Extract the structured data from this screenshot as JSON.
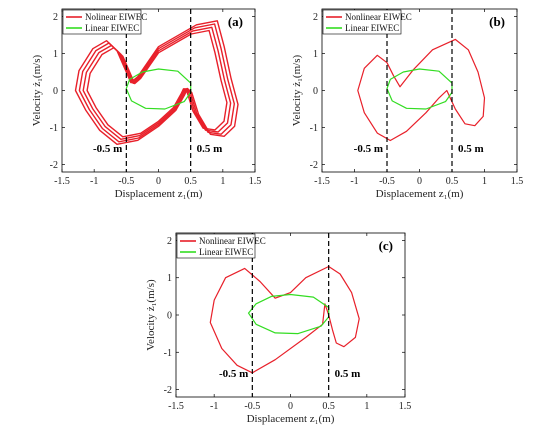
{
  "chart_data": [
    {
      "panel": "(a)",
      "type": "line",
      "xlabel": "Displacement z₁(m)",
      "ylabel": "Velocity ż₁(m/s)",
      "xlim": [
        -1.5,
        1.5
      ],
      "ylim": [
        -2.2,
        2.2
      ],
      "xticks": [
        -1.5,
        -1,
        -0.5,
        0,
        0.5,
        1,
        1.5
      ],
      "yticks": [
        -2,
        -1,
        0,
        1,
        2
      ],
      "xtick_labels": [
        "-1.5",
        "-1",
        "-0.5",
        "0",
        "0.5",
        "1",
        "1.5"
      ],
      "ytick_labels": [
        "-2",
        "-1",
        "0",
        "1",
        "2"
      ],
      "vlines": [
        -0.5,
        0.5
      ],
      "markers": [
        {
          "text": "-0.5 m",
          "x": -0.5,
          "y": -1.55
        },
        {
          "text": "0.5 m",
          "x": 0.5,
          "y": -1.55
        }
      ],
      "legend": {
        "placement": "top-left",
        "entries": [
          {
            "name": "Nolinear EIWEC",
            "color": "#e8202a"
          },
          {
            "name": "Linear EIWEC",
            "color": "#33dd22"
          }
        ]
      },
      "series": [
        {
          "name": "Nolinear EIWEC",
          "color": "#e8202a",
          "points": [
            [
              0.48,
              -0.05
            ],
            [
              0.58,
              -0.6
            ],
            [
              0.75,
              -1.1
            ],
            [
              0.95,
              -1.15
            ],
            [
              1.1,
              -0.9
            ],
            [
              1.15,
              -0.35
            ],
            [
              1.05,
              0.3
            ],
            [
              0.95,
              1.1
            ],
            [
              0.85,
              1.75
            ],
            [
              0.55,
              1.65
            ],
            [
              0.0,
              1.1
            ],
            [
              -0.3,
              0.35
            ],
            [
              -0.4,
              0.2
            ],
            [
              -0.6,
              1.0
            ],
            [
              -0.75,
              1.25
            ],
            [
              -0.95,
              1.05
            ],
            [
              -1.15,
              0.5
            ],
            [
              -1.2,
              0.0
            ],
            [
              -1.05,
              -0.5
            ],
            [
              -0.85,
              -1.0
            ],
            [
              -0.6,
              -1.35
            ],
            [
              -0.3,
              -1.25
            ],
            [
              0.0,
              -0.9
            ],
            [
              0.25,
              -0.5
            ],
            [
              0.38,
              -0.1
            ],
            [
              0.42,
              0.05
            ]
          ],
          "repeats": 4
        },
        {
          "name": "Linear EIWEC",
          "color": "#33dd22",
          "points": [
            [
              -0.5,
              0.05
            ],
            [
              -0.45,
              0.3
            ],
            [
              -0.25,
              0.5
            ],
            [
              0.0,
              0.58
            ],
            [
              0.3,
              0.52
            ],
            [
              0.5,
              0.2
            ],
            [
              0.5,
              -0.05
            ],
            [
              0.4,
              -0.3
            ],
            [
              0.1,
              -0.5
            ],
            [
              -0.2,
              -0.48
            ],
            [
              -0.42,
              -0.28
            ],
            [
              -0.5,
              0.05
            ]
          ]
        }
      ]
    },
    {
      "panel": "(b)",
      "type": "line",
      "xlabel": "Displacement z₁(m)",
      "ylabel": "Velocity ż₁(m/s)",
      "xlim": [
        -1.5,
        1.5
      ],
      "ylim": [
        -2.2,
        2.2
      ],
      "xticks": [
        -1.5,
        -1,
        -0.5,
        0,
        0.5,
        1,
        1.5
      ],
      "yticks": [
        -2,
        -1,
        0,
        1,
        2
      ],
      "xtick_labels": [
        "-1.5",
        "-1",
        "-0.5",
        "0",
        "0.5",
        "1",
        "1.5"
      ],
      "ytick_labels": [
        "-2",
        "-1",
        "0",
        "1",
        "2"
      ],
      "vlines": [
        -0.5,
        0.5
      ],
      "markers": [
        {
          "text": "-0.5 m",
          "x": -0.5,
          "y": -1.55
        },
        {
          "text": "0.5 m",
          "x": 0.5,
          "y": -1.55
        }
      ],
      "legend": {
        "placement": "top-left",
        "entries": [
          {
            "name": "Nonlinear EIWEC",
            "color": "#e8202a"
          },
          {
            "name": "Linear EIWEC",
            "color": "#33dd22"
          }
        ]
      },
      "series": [
        {
          "name": "Nonlinear EIWEC",
          "color": "#e8202a",
          "points": [
            [
              0.42,
              0.0
            ],
            [
              0.55,
              -0.5
            ],
            [
              0.7,
              -0.9
            ],
            [
              0.85,
              -0.95
            ],
            [
              0.98,
              -0.7
            ],
            [
              1.0,
              -0.2
            ],
            [
              0.9,
              0.5
            ],
            [
              0.75,
              1.1
            ],
            [
              0.55,
              1.38
            ],
            [
              0.2,
              1.1
            ],
            [
              -0.1,
              0.55
            ],
            [
              -0.3,
              0.1
            ],
            [
              -0.4,
              0.4
            ],
            [
              -0.5,
              0.75
            ],
            [
              -0.65,
              0.95
            ],
            [
              -0.85,
              0.6
            ],
            [
              -0.95,
              0.0
            ],
            [
              -0.85,
              -0.6
            ],
            [
              -0.65,
              -1.15
            ],
            [
              -0.45,
              -1.35
            ],
            [
              -0.2,
              -1.1
            ],
            [
              0.1,
              -0.6
            ],
            [
              0.3,
              -0.2
            ],
            [
              0.42,
              0.0
            ]
          ]
        },
        {
          "name": "Linear EIWEC",
          "color": "#33dd22",
          "points": [
            [
              -0.5,
              0.05
            ],
            [
              -0.45,
              0.3
            ],
            [
              -0.25,
              0.5
            ],
            [
              0.0,
              0.58
            ],
            [
              0.3,
              0.52
            ],
            [
              0.5,
              0.2
            ],
            [
              0.5,
              -0.05
            ],
            [
              0.4,
              -0.3
            ],
            [
              0.1,
              -0.5
            ],
            [
              -0.2,
              -0.48
            ],
            [
              -0.42,
              -0.28
            ],
            [
              -0.5,
              0.05
            ]
          ]
        }
      ]
    },
    {
      "panel": "(c)",
      "type": "line",
      "xlabel": "Displacement z₁(m)",
      "ylabel": "Velocity ż₁(m/s)",
      "xlim": [
        -1.5,
        1.5
      ],
      "ylim": [
        -2.2,
        2.2
      ],
      "xticks": [
        -1.5,
        -1,
        -0.5,
        0,
        0.5,
        1,
        1.5
      ],
      "yticks": [
        -2,
        -1,
        0,
        1,
        2
      ],
      "xtick_labels": [
        "-1.5",
        "-1",
        "-0.5",
        "0",
        "0.5",
        "1",
        "1.5"
      ],
      "ytick_labels": [
        "-2",
        "-1",
        "0",
        "1",
        "2"
      ],
      "vlines": [
        -0.5,
        0.5
      ],
      "markers": [
        {
          "text": "-0.5 m",
          "x": -0.5,
          "y": -1.55
        },
        {
          "text": "0.5 m",
          "x": 0.5,
          "y": -1.55
        }
      ],
      "legend": {
        "placement": "top-left",
        "entries": [
          {
            "name": "Nonlinear EIWEC",
            "color": "#e8202a"
          },
          {
            "name": "Linear EIWEC",
            "color": "#33dd22"
          }
        ]
      },
      "series": [
        {
          "name": "Nonlinear EIWEC",
          "color": "#e8202a",
          "points": [
            [
              0.45,
              0.3
            ],
            [
              0.5,
              0.0
            ],
            [
              0.55,
              -0.4
            ],
            [
              0.6,
              -0.75
            ],
            [
              0.7,
              -0.85
            ],
            [
              0.85,
              -0.6
            ],
            [
              0.9,
              -0.1
            ],
            [
              0.8,
              0.6
            ],
            [
              0.65,
              1.1
            ],
            [
              0.5,
              1.3
            ],
            [
              0.2,
              1.0
            ],
            [
              0.0,
              0.6
            ],
            [
              -0.2,
              0.45
            ],
            [
              -0.4,
              0.9
            ],
            [
              -0.6,
              1.25
            ],
            [
              -0.85,
              1.0
            ],
            [
              -1.0,
              0.4
            ],
            [
              -1.05,
              -0.2
            ],
            [
              -0.9,
              -0.9
            ],
            [
              -0.7,
              -1.35
            ],
            [
              -0.5,
              -1.55
            ],
            [
              -0.2,
              -1.2
            ],
            [
              0.2,
              -0.6
            ],
            [
              0.42,
              -0.25
            ],
            [
              0.45,
              0.3
            ]
          ]
        },
        {
          "name": "Linear EIWEC",
          "color": "#33dd22",
          "points": [
            [
              -0.55,
              0.05
            ],
            [
              -0.45,
              0.3
            ],
            [
              -0.25,
              0.5
            ],
            [
              0.0,
              0.55
            ],
            [
              0.3,
              0.48
            ],
            [
              0.5,
              0.2
            ],
            [
              0.5,
              -0.05
            ],
            [
              0.4,
              -0.3
            ],
            [
              0.1,
              -0.5
            ],
            [
              -0.2,
              -0.48
            ],
            [
              -0.45,
              -0.25
            ],
            [
              -0.55,
              0.05
            ]
          ]
        }
      ]
    }
  ]
}
